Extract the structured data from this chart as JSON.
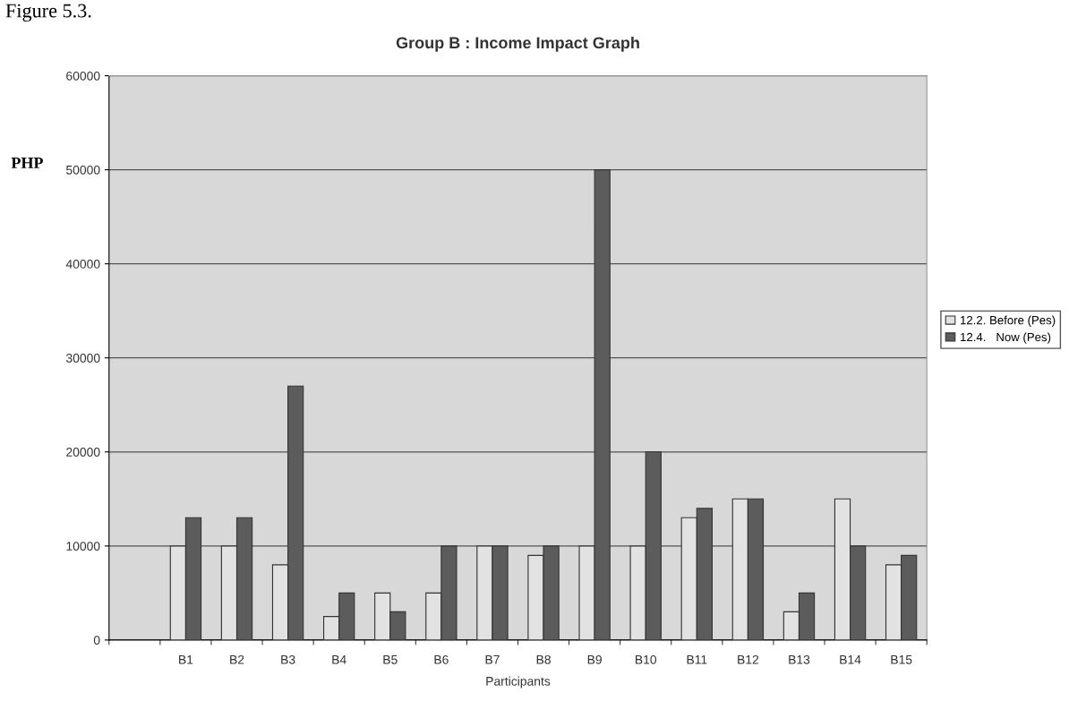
{
  "chart_data": {
    "type": "bar",
    "title": "Group B : Income Impact Graph",
    "xlabel": "Participants",
    "ylabel": "PHP",
    "annotations": [
      "Figure 5.3."
    ],
    "categories": [
      null,
      "B1",
      "B2",
      "B3",
      "B4",
      "B5",
      "B6",
      "B7",
      "B8",
      "B9",
      "B10",
      "B11",
      "B12",
      "B13",
      "B14",
      "B15"
    ],
    "series": [
      {
        "name": "12.2. Before (Pes)",
        "color": "#e2e2e2",
        "values": [
          null,
          10000,
          10000,
          8000,
          2500,
          5000,
          5000,
          10000,
          9000,
          10000,
          10000,
          13000,
          15000,
          3000,
          15000,
          8000
        ]
      },
      {
        "name": "12.4.   Now (Pes)",
        "color": "#5c5c5c",
        "values": [
          null,
          13000,
          13000,
          27000,
          5000,
          3000,
          10000,
          10000,
          10000,
          50000,
          20000,
          14000,
          15000,
          5000,
          10000,
          9000
        ]
      }
    ],
    "ylim": [
      0,
      60000
    ],
    "yticks": [
      0,
      10000,
      20000,
      30000,
      40000,
      50000,
      60000
    ],
    "grid": "y",
    "legend": "right"
  }
}
